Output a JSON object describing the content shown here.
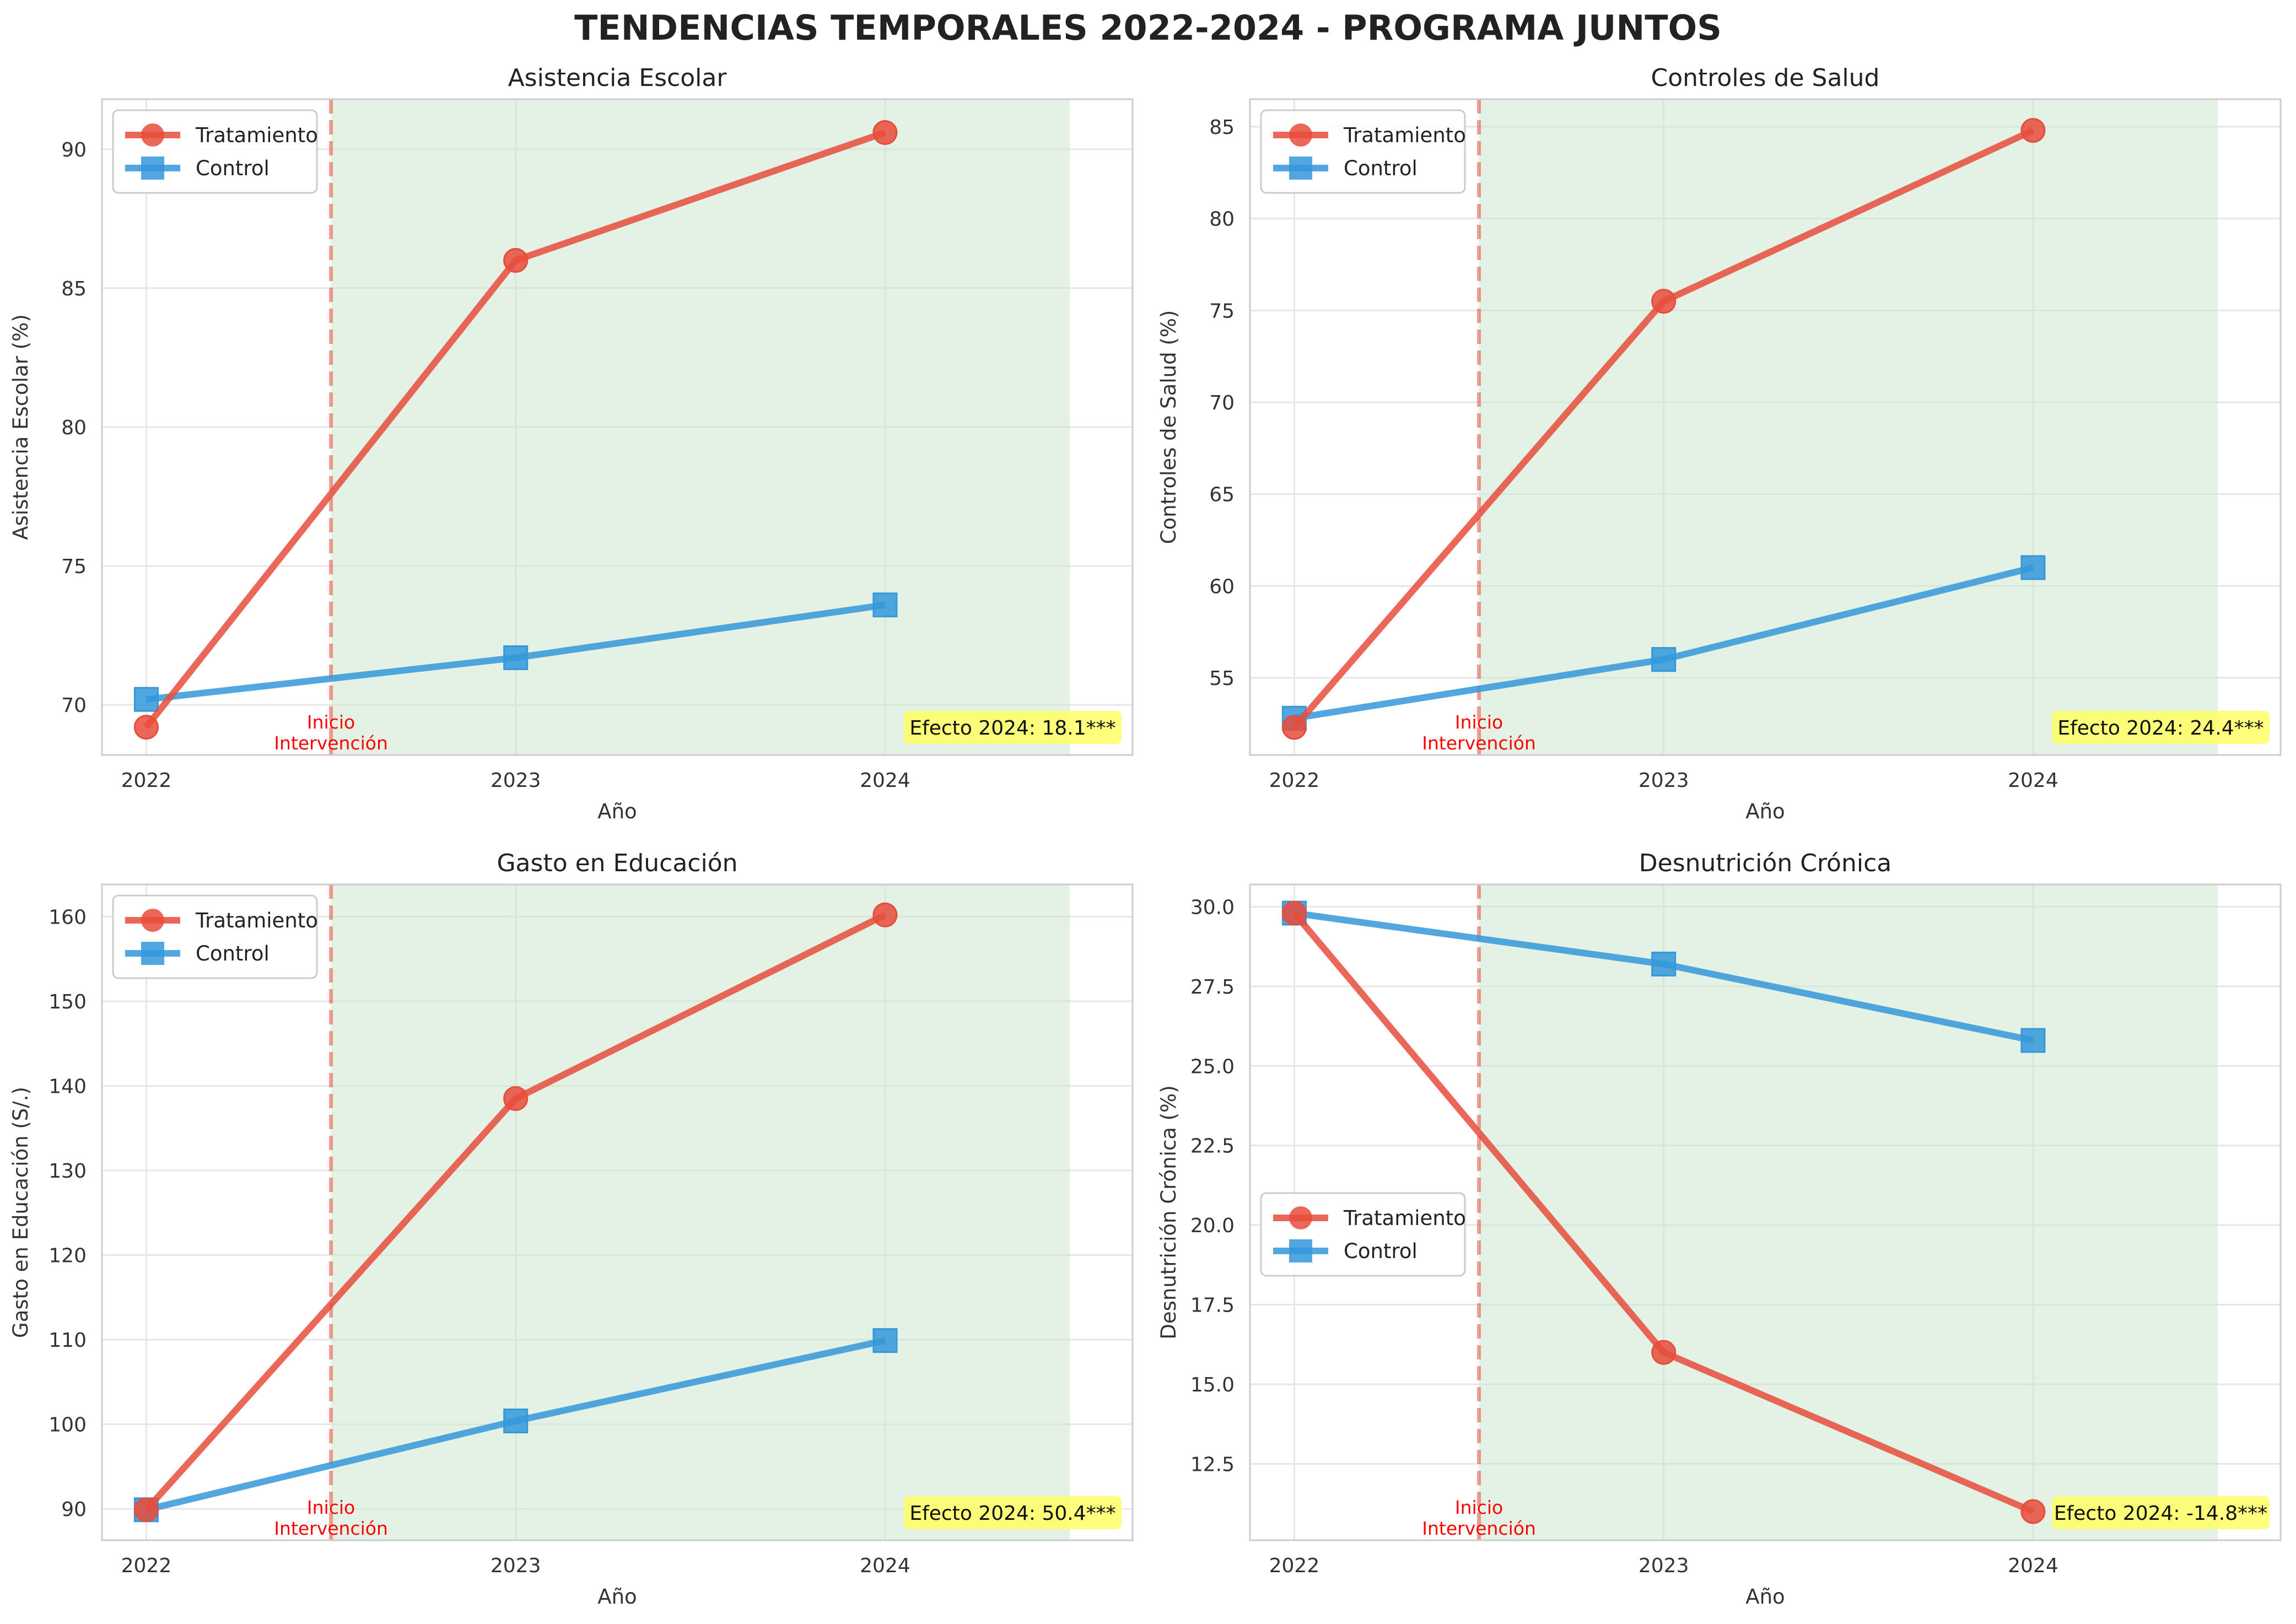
{
  "figure": {
    "title": "TENDENCIAS TEMPORALES 2022-2024 - PROGRAMA JUNTOS"
  },
  "colors": {
    "treatment": "#e74c3c",
    "control": "#3498db",
    "intervention_line": "#e74c3c",
    "shade": "#c8e6c9",
    "effect_box": "#ffff66",
    "annotation_text": "#ff0000",
    "grid": "#e6e6e6",
    "axes_edge": "#cccccc"
  },
  "chart_data": [
    {
      "type": "line",
      "title": "Asistencia Escolar",
      "xlabel": "Año",
      "ylabel": "Asistencia Escolar (%)",
      "x": [
        2022,
        2023,
        2024
      ],
      "xlim": [
        2021.88,
        2024.67
      ],
      "ylim": [
        68.2,
        91.8
      ],
      "yticks": [
        70,
        75,
        80,
        85,
        90
      ],
      "series": [
        {
          "name": "Tratamiento",
          "values": [
            69.2,
            86.0,
            90.6
          ],
          "marker": "circle"
        },
        {
          "name": "Control",
          "values": [
            70.2,
            71.7,
            73.6
          ],
          "marker": "square"
        }
      ],
      "intervention_x": 2022.5,
      "shade_range": [
        2022.5,
        2024.5
      ],
      "intervention_label": [
        "Inicio",
        "Intervención"
      ],
      "effect_label": "Efecto 2024: 18.1***",
      "legend_position": "upper-left"
    },
    {
      "type": "line",
      "title": "Controles de Salud",
      "xlabel": "Año",
      "ylabel": "Controles de Salud (%)",
      "x": [
        2022,
        2023,
        2024
      ],
      "xlim": [
        2021.88,
        2024.67
      ],
      "ylim": [
        50.8,
        86.5
      ],
      "yticks": [
        55,
        60,
        65,
        70,
        75,
        80,
        85
      ],
      "series": [
        {
          "name": "Tratamiento",
          "values": [
            52.3,
            75.5,
            84.8
          ],
          "marker": "circle"
        },
        {
          "name": "Control",
          "values": [
            52.8,
            56.0,
            61.0
          ],
          "marker": "square"
        }
      ],
      "intervention_x": 2022.5,
      "shade_range": [
        2022.5,
        2024.5
      ],
      "intervention_label": [
        "Inicio",
        "Intervención"
      ],
      "effect_label": "Efecto 2024: 24.4***",
      "legend_position": "upper-left"
    },
    {
      "type": "line",
      "title": "Gasto en Educación",
      "xlabel": "Año",
      "ylabel": "Gasto en Educación (S/.)",
      "x": [
        2022,
        2023,
        2024
      ],
      "xlim": [
        2021.88,
        2024.67
      ],
      "ylim": [
        86.3,
        163.8
      ],
      "yticks": [
        90,
        100,
        110,
        120,
        130,
        140,
        150,
        160
      ],
      "series": [
        {
          "name": "Tratamiento",
          "values": [
            89.9,
            138.5,
            160.2
          ],
          "marker": "circle"
        },
        {
          "name": "Control",
          "values": [
            89.9,
            100.4,
            109.9
          ],
          "marker": "square"
        }
      ],
      "intervention_x": 2022.5,
      "shade_range": [
        2022.5,
        2024.5
      ],
      "intervention_label": [
        "Inicio",
        "Intervención"
      ],
      "effect_label": "Efecto 2024: 50.4***",
      "legend_position": "upper-left"
    },
    {
      "type": "line",
      "title": "Desnutrición Crónica",
      "xlabel": "Año",
      "ylabel": "Desnutrición Crónica (%)",
      "x": [
        2022,
        2023,
        2024
      ],
      "xlim": [
        2021.88,
        2024.67
      ],
      "ylim": [
        10.1,
        30.7
      ],
      "yticks": [
        12.5,
        15.0,
        17.5,
        20.0,
        22.5,
        25.0,
        27.5,
        30.0
      ],
      "series": [
        {
          "name": "Tratamiento",
          "values": [
            29.8,
            16.0,
            11.0
          ],
          "marker": "circle"
        },
        {
          "name": "Control",
          "values": [
            29.8,
            28.2,
            25.8
          ],
          "marker": "square"
        }
      ],
      "intervention_x": 2022.5,
      "shade_range": [
        2022.5,
        2024.5
      ],
      "intervention_label": [
        "Inicio",
        "Intervención"
      ],
      "effect_label": "Efecto 2024: -14.8***",
      "legend_position": "center-left"
    }
  ]
}
